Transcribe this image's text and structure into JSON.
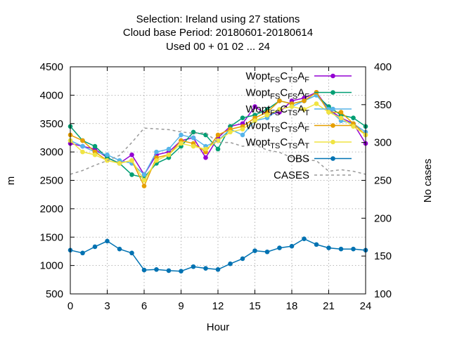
{
  "chart_data": {
    "type": "line",
    "title_lines": [
      "Selection: Ireland using    27 stations",
      "Cloud base   Period: 20180601-20180614",
      "Used  00 + 01 02 ... 24"
    ],
    "xlabel": "Hour",
    "ylabel": "m",
    "y2label": "No cases",
    "xlim": [
      0,
      24
    ],
    "ylim": [
      500,
      4500
    ],
    "y2lim": [
      100,
      400
    ],
    "xticks": [
      "0",
      "3",
      "6",
      "9",
      "12",
      "15",
      "18",
      "21",
      "24"
    ],
    "yticks": [
      "500",
      "1000",
      "1500",
      "2000",
      "2500",
      "3000",
      "3500",
      "4000",
      "4500"
    ],
    "y2ticks": [
      "100",
      "150",
      "200",
      "250",
      "300",
      "350",
      "400"
    ],
    "grid": true,
    "legend_position": "top-right",
    "x": [
      0,
      1,
      2,
      3,
      4,
      5,
      6,
      7,
      8,
      9,
      10,
      11,
      12,
      13,
      14,
      15,
      16,
      17,
      18,
      19,
      20,
      21,
      22,
      23,
      24
    ],
    "series": [
      {
        "name_parts": [
          [
            "Wopt",
            ""
          ],
          [
            "FS",
            "sub"
          ],
          [
            "C",
            ""
          ],
          [
            "TS",
            "sub"
          ],
          [
            "A",
            ""
          ],
          [
            "F",
            "sub"
          ]
        ],
        "color": "#9400d3",
        "marker": "circle",
        "axis": "y",
        "values": [
          3150,
          3100,
          3050,
          2900,
          2800,
          2950,
          2600,
          2950,
          3000,
          3200,
          3250,
          2900,
          3250,
          3450,
          3500,
          3800,
          3650,
          3700,
          3900,
          3950,
          4050,
          3750,
          3600,
          3500,
          3150
        ]
      },
      {
        "name_parts": [
          [
            "Wopt",
            ""
          ],
          [
            "FS",
            "sub"
          ],
          [
            "C",
            ""
          ],
          [
            "FS",
            "sub"
          ],
          [
            "A",
            ""
          ],
          [
            "F",
            "sub"
          ]
        ],
        "color": "#009e73",
        "marker": "circle",
        "axis": "y",
        "values": [
          3450,
          3200,
          3100,
          2900,
          2800,
          2600,
          2550,
          2800,
          2900,
          3100,
          3350,
          3300,
          3050,
          3450,
          3600,
          3650,
          3750,
          3900,
          3850,
          3900,
          4000,
          3800,
          3650,
          3600,
          3450
        ]
      },
      {
        "name_parts": [
          [
            "Wopt",
            ""
          ],
          [
            "FS",
            "sub"
          ],
          [
            "C",
            ""
          ],
          [
            "TS",
            "sub"
          ],
          [
            "A",
            ""
          ],
          [
            "T",
            "sub"
          ]
        ],
        "color": "#56b4e9",
        "marker": "circle",
        "axis": "y",
        "values": [
          3200,
          3100,
          3000,
          2950,
          2850,
          2800,
          2600,
          3000,
          3050,
          3300,
          3250,
          3100,
          3200,
          3400,
          3300,
          3550,
          3600,
          3750,
          3800,
          3900,
          4000,
          3750,
          3550,
          3500,
          3350
        ]
      },
      {
        "name_parts": [
          [
            "Wopt",
            ""
          ],
          [
            "TS",
            "sub"
          ],
          [
            "C",
            ""
          ],
          [
            "TS",
            "sub"
          ],
          [
            "A",
            ""
          ],
          [
            "F",
            "sub"
          ]
        ],
        "color": "#e69f00",
        "marker": "circle",
        "axis": "y",
        "values": [
          3300,
          3200,
          3000,
          2850,
          2800,
          2850,
          2400,
          2900,
          2950,
          3200,
          3150,
          3000,
          3300,
          3400,
          3450,
          3600,
          3700,
          3900,
          3850,
          3900,
          4050,
          3700,
          3700,
          3500,
          3300
        ]
      },
      {
        "name_parts": [
          [
            "Wopt",
            ""
          ],
          [
            "TS",
            "sub"
          ],
          [
            "C",
            ""
          ],
          [
            "TS",
            "sub"
          ],
          [
            "A",
            ""
          ],
          [
            "T",
            "sub"
          ]
        ],
        "color": "#f0e442",
        "marker": "circle",
        "axis": "y",
        "values": [
          3200,
          3000,
          2950,
          2850,
          2800,
          2850,
          2500,
          2850,
          2950,
          3150,
          3100,
          3050,
          3200,
          3350,
          3400,
          3550,
          3650,
          3750,
          3800,
          3750,
          3850,
          3700,
          3600,
          3450,
          3300
        ]
      },
      {
        "name_parts": [
          [
            "OBS",
            ""
          ]
        ],
        "color": "#0072b2",
        "marker": "circle",
        "axis": "y",
        "values": [
          1270,
          1220,
          1330,
          1430,
          1290,
          1220,
          920,
          930,
          910,
          900,
          980,
          950,
          930,
          1030,
          1120,
          1260,
          1240,
          1310,
          1340,
          1470,
          1370,
          1310,
          1290,
          1290,
          1270
        ]
      },
      {
        "name_parts": [
          [
            "CASES",
            ""
          ]
        ],
        "color": "#999999",
        "marker": "none",
        "dashed": true,
        "axis": "y2",
        "values": [
          258,
          263,
          270,
          276,
          283,
          300,
          319,
          318,
          317,
          314,
          312,
          313,
          300,
          300,
          295,
          297,
          290,
          287,
          280,
          277,
          276,
          262,
          264,
          262,
          258
        ]
      }
    ]
  }
}
